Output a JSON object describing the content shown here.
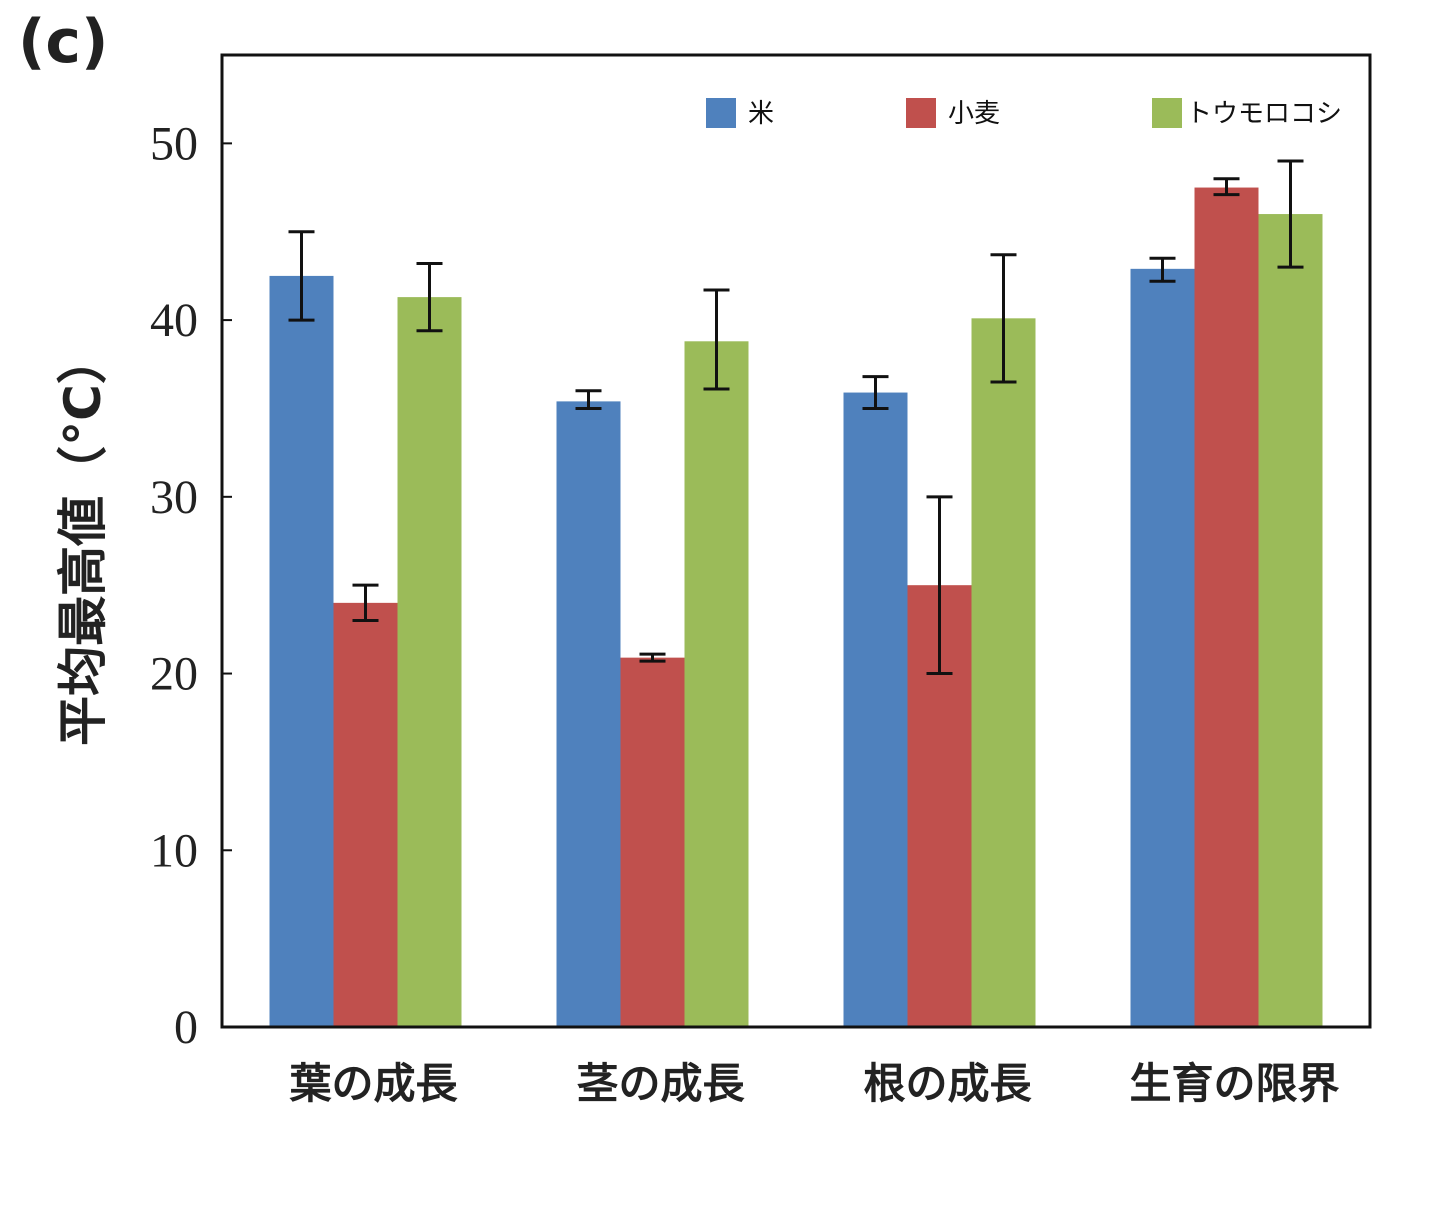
{
  "chart_data": {
    "type": "bar",
    "panel_label": "(c)",
    "title": "",
    "xlabel": "",
    "ylabel": "平均最高値（°C）",
    "ylim": [
      0,
      55
    ],
    "yticks": [
      0,
      10,
      20,
      30,
      40,
      50
    ],
    "grid": false,
    "legend_position": "top-right",
    "categories": [
      "葉の成長",
      "茎の成長",
      "根の成長",
      "生育の限界"
    ],
    "series": [
      {
        "name": "米",
        "color": "#4f81bd",
        "values": [
          42.5,
          35.4,
          35.9,
          42.9
        ],
        "error_low": [
          40.0,
          35.0,
          35.0,
          42.2
        ],
        "error_high": [
          45.0,
          36.0,
          36.8,
          43.5
        ]
      },
      {
        "name": "小麦",
        "color": "#c0504d",
        "values": [
          24.0,
          20.9,
          25.0,
          47.5
        ],
        "error_low": [
          23.0,
          20.7,
          20.0,
          47.1
        ],
        "error_high": [
          25.0,
          21.1,
          30.0,
          48.0
        ]
      },
      {
        "name": "トウモロコシ",
        "color": "#9bbb59",
        "values": [
          41.3,
          38.8,
          40.1,
          46.0
        ],
        "error_low": [
          39.4,
          36.1,
          36.5,
          43.0
        ],
        "error_high": [
          43.2,
          41.7,
          43.7,
          49.0
        ]
      }
    ]
  }
}
